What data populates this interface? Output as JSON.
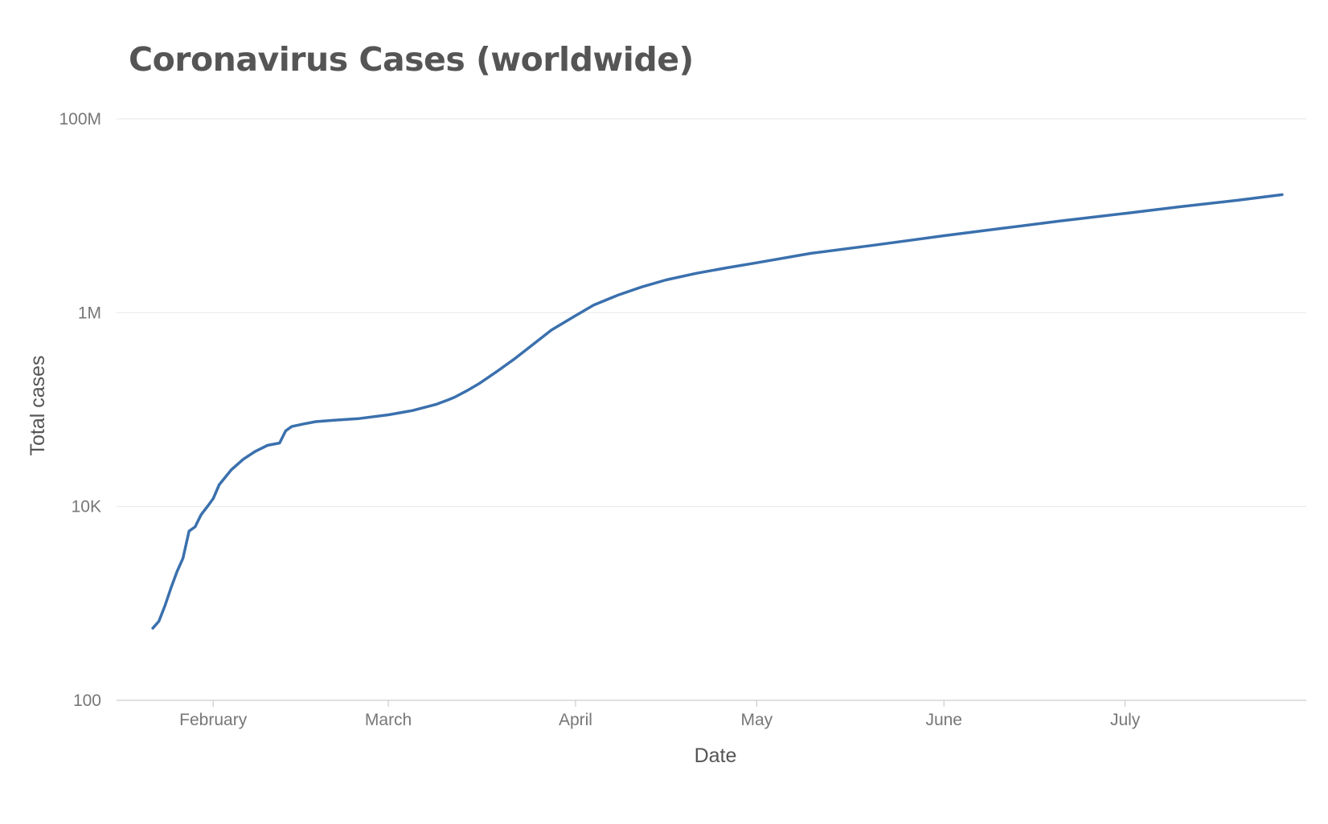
{
  "chart_data": {
    "type": "line",
    "title": "Coronavirus Cases (worldwide)",
    "xlabel": "Date",
    "ylabel": "Total cases",
    "yscale": "log",
    "ylim": [
      100,
      100000000
    ],
    "yticks": [
      {
        "value": 100,
        "label": "100"
      },
      {
        "value": 10000,
        "label": "10K"
      },
      {
        "value": 1000000,
        "label": "1M"
      },
      {
        "value": 100000000,
        "label": "100M"
      }
    ],
    "xlim": [
      "2020-01-16",
      "2020-07-31"
    ],
    "xticks": [
      {
        "value": "2020-02-01",
        "label": "February"
      },
      {
        "value": "2020-03-01",
        "label": "March"
      },
      {
        "value": "2020-04-01",
        "label": "April"
      },
      {
        "value": "2020-05-01",
        "label": "May"
      },
      {
        "value": "2020-06-01",
        "label": "June"
      },
      {
        "value": "2020-07-01",
        "label": "July"
      }
    ],
    "grid": "horizontal",
    "line_color": "#3a70ad",
    "series": [
      {
        "x": [
          "2020-01-22",
          "2020-01-23",
          "2020-01-24",
          "2020-01-25",
          "2020-01-26",
          "2020-01-27",
          "2020-01-28",
          "2020-01-29",
          "2020-01-30",
          "2020-01-31",
          "2020-02-01",
          "2020-02-02",
          "2020-02-04",
          "2020-02-06",
          "2020-02-08",
          "2020-02-10",
          "2020-02-12",
          "2020-02-13",
          "2020-02-14",
          "2020-02-16",
          "2020-02-18",
          "2020-02-21",
          "2020-02-25",
          "2020-03-01",
          "2020-03-05",
          "2020-03-09",
          "2020-03-11",
          "2020-03-12",
          "2020-03-14",
          "2020-03-16",
          "2020-03-19",
          "2020-03-22",
          "2020-03-25",
          "2020-03-28",
          "2020-04-01",
          "2020-04-04",
          "2020-04-08",
          "2020-04-12",
          "2020-04-16",
          "2020-04-21",
          "2020-04-26",
          "2020-05-01",
          "2020-05-10",
          "2020-05-20",
          "2020-06-01",
          "2020-06-10",
          "2020-06-20",
          "2020-07-01",
          "2020-07-10",
          "2020-07-20",
          "2020-07-27"
        ],
        "y": [
          555,
          654,
          941,
          1434,
          2118,
          2927,
          5578,
          6166,
          8235,
          9927,
          12038,
          16787,
          23892,
          30817,
          37126,
          42763,
          45171,
          60386,
          66912,
          71255,
          75153,
          77790,
          80600,
          88400,
          97800,
          113600,
          126700,
          134500,
          156400,
          184900,
          247900,
          337000,
          472800,
          660900,
          932600,
          1198000,
          1518000,
          1848000,
          2181000,
          2548000,
          2900000,
          3275000,
          4100000,
          4930000,
          6230000,
          7335000,
          8800000,
          10580000,
          12370000,
          14560000,
          16500000
        ]
      }
    ]
  }
}
